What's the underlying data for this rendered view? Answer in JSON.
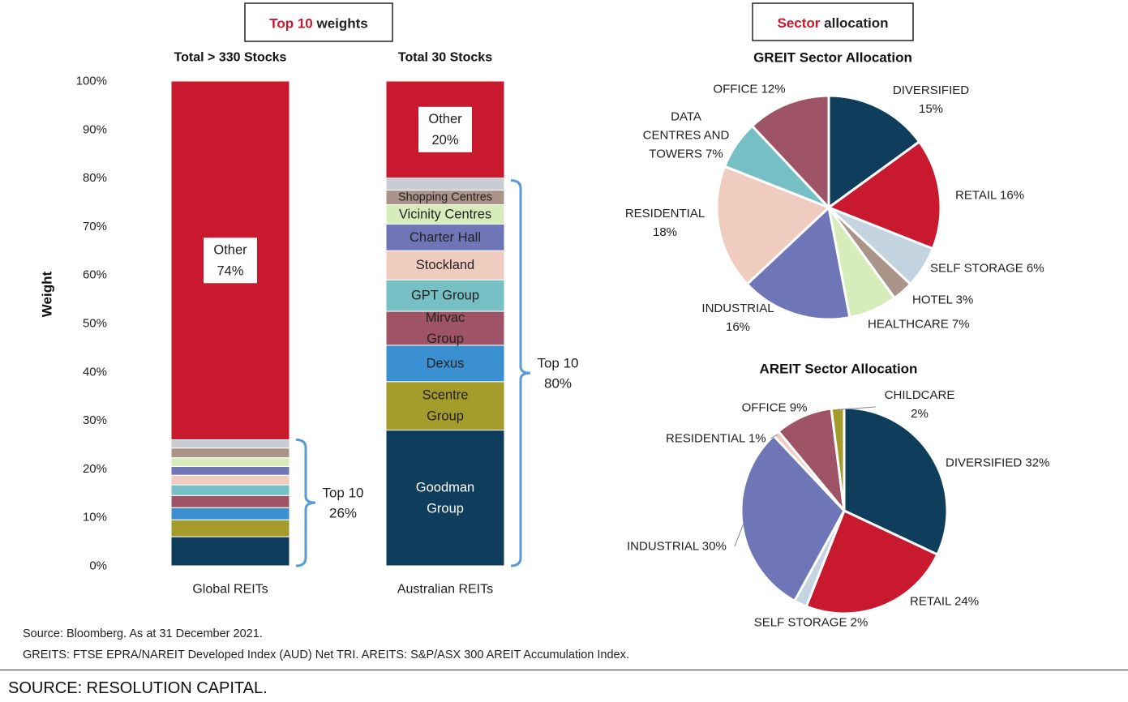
{
  "colors": {
    "red": "#c8192e",
    "navy": "#0f3d5c",
    "olive": "#a39b2a",
    "blue": "#3a8fd1",
    "mauve": "#9e5466",
    "teal": "#76bfc4",
    "peach": "#efcbc0",
    "purple": "#6f76b8",
    "lightgreen": "#d6ecbb",
    "taupe": "#aa9388",
    "lightgray": "#c9cdd3",
    "lightblue": "#c3d3e0",
    "bracket": "#5b9bd5"
  },
  "header_boxes": [
    {
      "accent": "Top 10",
      "rest": " weights"
    },
    {
      "accent": "Sector",
      "rest": " allocation"
    }
  ],
  "chart_data": [
    {
      "type": "bar",
      "stacked": true,
      "title": "",
      "xlabel": "",
      "ylabel": "Weight",
      "ylim": [
        0,
        100
      ],
      "yticks": [
        "0%",
        "10%",
        "20%",
        "30%",
        "40%",
        "50%",
        "60%",
        "70%",
        "80%",
        "90%",
        "100%"
      ],
      "categories": [
        "Global REITs",
        "Australian REITs"
      ],
      "subtitles": [
        "Total > 330 Stocks",
        "Total 30 Stocks"
      ],
      "stacks": [
        [
          {
            "value": 6,
            "color": "navy",
            "label": ""
          },
          {
            "value": 3.5,
            "color": "olive",
            "label": ""
          },
          {
            "value": 2.5,
            "color": "blue",
            "label": ""
          },
          {
            "value": 2.5,
            "color": "mauve",
            "label": ""
          },
          {
            "value": 2.2,
            "color": "teal",
            "label": ""
          },
          {
            "value": 2,
            "color": "peach",
            "label": ""
          },
          {
            "value": 1.8,
            "color": "purple",
            "label": ""
          },
          {
            "value": 1.8,
            "color": "lightgreen",
            "label": ""
          },
          {
            "value": 2,
            "color": "taupe",
            "label": ""
          },
          {
            "value": 1.7,
            "color": "lightgray",
            "label": ""
          },
          {
            "value": 74,
            "color": "red",
            "label": "Other\n74%",
            "boxed": true
          }
        ],
        [
          {
            "value": 28,
            "color": "navy",
            "label": "Goodman\nGroup",
            "light": true
          },
          {
            "value": 10,
            "color": "olive",
            "label": "Scentre\nGroup"
          },
          {
            "value": 7.5,
            "color": "blue",
            "label": "Dexus"
          },
          {
            "value": 7,
            "color": "mauve",
            "label": "Mirvac\nGroup"
          },
          {
            "value": 6.5,
            "color": "teal",
            "label": "GPT Group"
          },
          {
            "value": 6,
            "color": "peach",
            "label": "Stockland"
          },
          {
            "value": 5.5,
            "color": "purple",
            "label": "Charter Hall"
          },
          {
            "value": 4,
            "color": "lightgreen",
            "label": "Vicinity Centres"
          },
          {
            "value": 3,
            "color": "taupe",
            "label": "Shopping Centres"
          },
          {
            "value": 2.5,
            "color": "lightgray",
            "label": ""
          },
          {
            "value": 20,
            "color": "red",
            "label": "Other\n20%",
            "boxed": true
          }
        ]
      ],
      "brackets": [
        {
          "bar": 0,
          "from": 0,
          "to": 26,
          "label": "Top 10\n26%"
        },
        {
          "bar": 1,
          "from": 0,
          "to": 79.5,
          "label": "Top 10\n80%"
        }
      ]
    },
    {
      "type": "pie",
      "title": "GREIT Sector Allocation",
      "slices": [
        {
          "label": "DIVERSIFIED\n15%",
          "value": 15,
          "color": "navy"
        },
        {
          "label": "RETAIL  16%",
          "value": 16,
          "color": "red"
        },
        {
          "label": "SELF STORAGE  6%",
          "value": 6,
          "color": "lightblue"
        },
        {
          "label": "HOTEL  3%",
          "value": 3,
          "color": "taupe"
        },
        {
          "label": "HEALTHCARE  7%",
          "value": 7,
          "color": "lightgreen"
        },
        {
          "label": "INDUSTRIAL\n16%",
          "value": 16,
          "color": "purple"
        },
        {
          "label": "RESIDENTIAL\n18%",
          "value": 18,
          "color": "peach"
        },
        {
          "label": "DATA\nCENTRES AND\nTOWERS  7%",
          "value": 7,
          "color": "teal"
        },
        {
          "label": "OFFICE  12%",
          "value": 12,
          "color": "mauve"
        }
      ]
    },
    {
      "type": "pie",
      "title": "AREIT Sector Allocation",
      "slices": [
        {
          "label": "DIVERSIFIED  32%",
          "value": 32,
          "color": "navy"
        },
        {
          "label": "RETAIL  24%",
          "value": 24,
          "color": "red"
        },
        {
          "label": "SELF STORAGE  2%",
          "value": 2,
          "color": "lightblue"
        },
        {
          "label": "INDUSTRIAL  30%",
          "value": 30,
          "color": "purple"
        },
        {
          "label": "RESIDENTIAL  1%",
          "value": 1,
          "color": "peach"
        },
        {
          "label": "OFFICE  9%",
          "value": 9,
          "color": "mauve"
        },
        {
          "label": "CHILDCARE\n2%",
          "value": 2,
          "color": "olive"
        }
      ]
    }
  ],
  "notes": [
    "Source: Bloomberg. As at 31 December 2021.",
    "GREITS: FTSE EPRA/NAREIT Developed Index (AUD) Net TRI. AREITS: S&P/ASX 300 AREIT Accumulation Index."
  ],
  "footer": "SOURCE: RESOLUTION CAPITAL."
}
